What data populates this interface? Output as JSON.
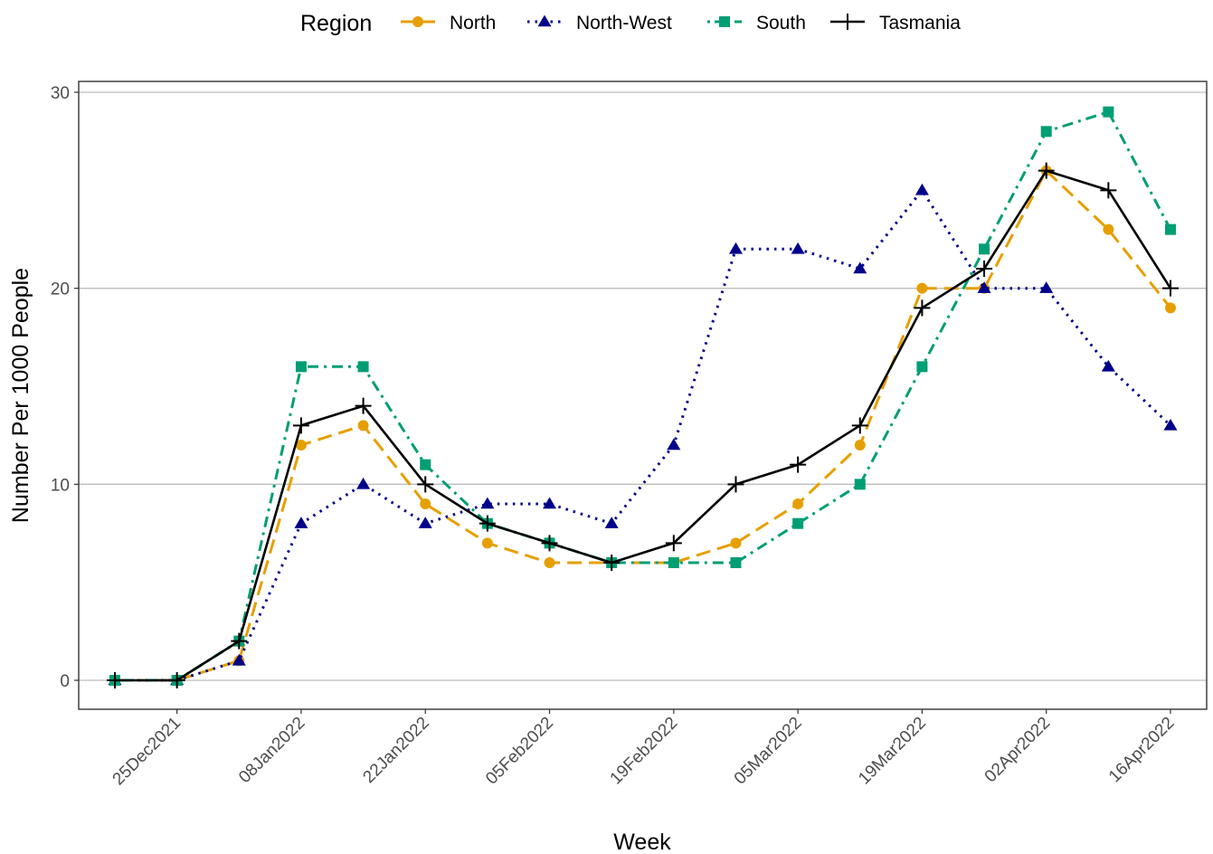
{
  "chart_data": {
    "type": "line",
    "title": "",
    "xlabel": "Week",
    "ylabel": "Number Per 1000 People",
    "legend_title": "Region",
    "legend_position": "top",
    "ylim": [
      0,
      30
    ],
    "yticks": [
      0,
      10,
      20,
      30
    ],
    "grid": "horizontal major",
    "x": [
      "2021-12-18",
      "2021-12-25",
      "2022-01-01",
      "2022-01-08",
      "2022-01-15",
      "2022-01-22",
      "2022-01-29",
      "2022-02-05",
      "2022-02-12",
      "2022-02-19",
      "2022-02-26",
      "2022-03-05",
      "2022-03-12",
      "2022-03-19",
      "2022-03-26",
      "2022-04-02",
      "2022-04-09",
      "2022-04-16"
    ],
    "xticks": [
      {
        "date": "2021-12-25",
        "label": "25Dec2021"
      },
      {
        "date": "2022-01-08",
        "label": "08Jan2022"
      },
      {
        "date": "2022-01-22",
        "label": "22Jan2022"
      },
      {
        "date": "2022-02-05",
        "label": "05Feb2022"
      },
      {
        "date": "2022-02-19",
        "label": "19Feb2022"
      },
      {
        "date": "2022-03-05",
        "label": "05Mar2022"
      },
      {
        "date": "2022-03-19",
        "label": "19Mar2022"
      },
      {
        "date": "2022-04-02",
        "label": "02Apr2022"
      },
      {
        "date": "2022-04-16",
        "label": "16Apr2022"
      }
    ],
    "series": [
      {
        "name": "North",
        "color": "#E69F00",
        "marker": "circle",
        "line": "longdash",
        "values": [
          0,
          0,
          1,
          12,
          13,
          9,
          7,
          6,
          6,
          6,
          7,
          9,
          12,
          20,
          20,
          26,
          23,
          19
        ]
      },
      {
        "name": "North-West",
        "color": "#00008B",
        "marker": "triangle",
        "line": "dotted",
        "values": [
          0,
          0,
          1,
          8,
          10,
          8,
          9,
          9,
          8,
          12,
          22,
          22,
          21,
          25,
          20,
          20,
          16,
          13
        ]
      },
      {
        "name": "South",
        "color": "#009E73",
        "marker": "square",
        "line": "dotdash",
        "values": [
          0,
          0,
          2,
          16,
          16,
          11,
          8,
          7,
          6,
          6,
          6,
          8,
          10,
          16,
          22,
          28,
          29,
          23
        ]
      },
      {
        "name": "Tasmania",
        "color": "#000000",
        "marker": "plus",
        "line": "solid",
        "values": [
          0,
          0,
          2,
          13,
          14,
          10,
          8,
          7,
          6,
          7,
          10,
          11,
          13,
          19,
          21,
          26,
          25,
          20
        ]
      }
    ]
  }
}
